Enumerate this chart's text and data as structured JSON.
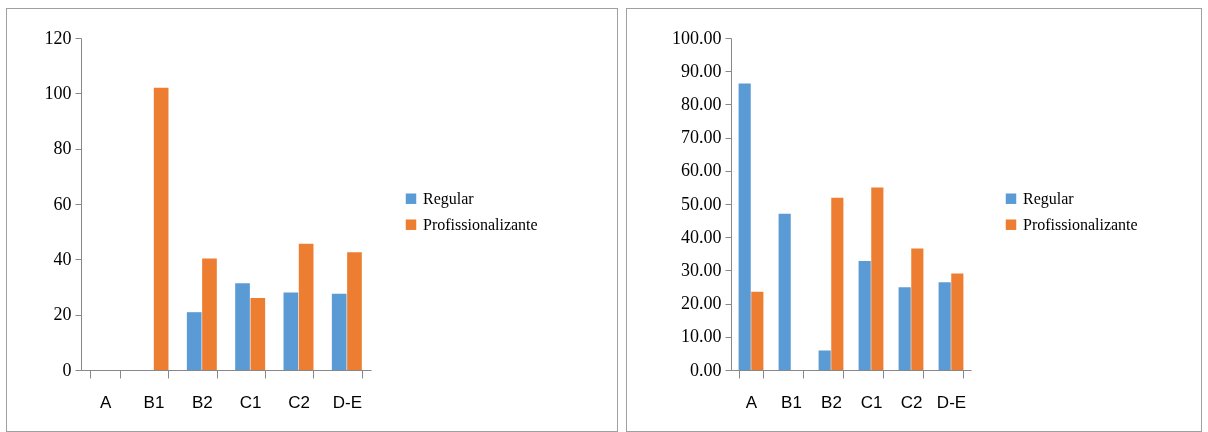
{
  "chart_data": [
    {
      "type": "bar",
      "categories": [
        "A",
        "B1",
        "B2",
        "C1",
        "C2",
        "D-E"
      ],
      "series": [
        {
          "name": "Regular",
          "color": "#5b9bd5",
          "values": [
            null,
            null,
            20.9,
            31.4,
            28.0,
            27.6
          ]
        },
        {
          "name": "Profissionalizante",
          "color": "#ed7d31",
          "values": [
            null,
            102,
            40.3,
            26.0,
            45.6,
            42.6
          ]
        }
      ],
      "ylim": [
        0,
        120
      ],
      "yticks": [
        0,
        20,
        40,
        60,
        80,
        100,
        120
      ],
      "grid": false,
      "legend": "right"
    },
    {
      "type": "bar",
      "categories": [
        "A",
        "B1",
        "B2",
        "C1",
        "C2",
        "D-E"
      ],
      "series": [
        {
          "name": "Regular",
          "color": "#5b9bd5",
          "values": [
            86.3,
            47.1,
            5.9,
            32.8,
            24.9,
            26.4
          ]
        },
        {
          "name": "Profissionalizante",
          "color": "#ed7d31",
          "values": [
            23.6,
            null,
            51.9,
            55.0,
            36.6,
            29.1
          ]
        }
      ],
      "ylim": [
        0,
        100
      ],
      "yticks": [
        {
          "value": 0,
          "label": "0.00"
        },
        {
          "value": 10,
          "label": "10.00"
        },
        {
          "value": 20,
          "label": "20.00"
        },
        {
          "value": 30,
          "label": "30.00"
        },
        {
          "value": 40,
          "label": "40.00"
        },
        {
          "value": 50,
          "label": "50.00"
        },
        {
          "value": 60,
          "label": "60.00"
        },
        {
          "value": 70,
          "label": "70.00"
        },
        {
          "value": 80,
          "label": "80.00"
        },
        {
          "value": 90,
          "label": "90.00"
        },
        {
          "value": 100,
          "label": "100.00"
        }
      ],
      "grid": false,
      "legend": "right"
    }
  ]
}
